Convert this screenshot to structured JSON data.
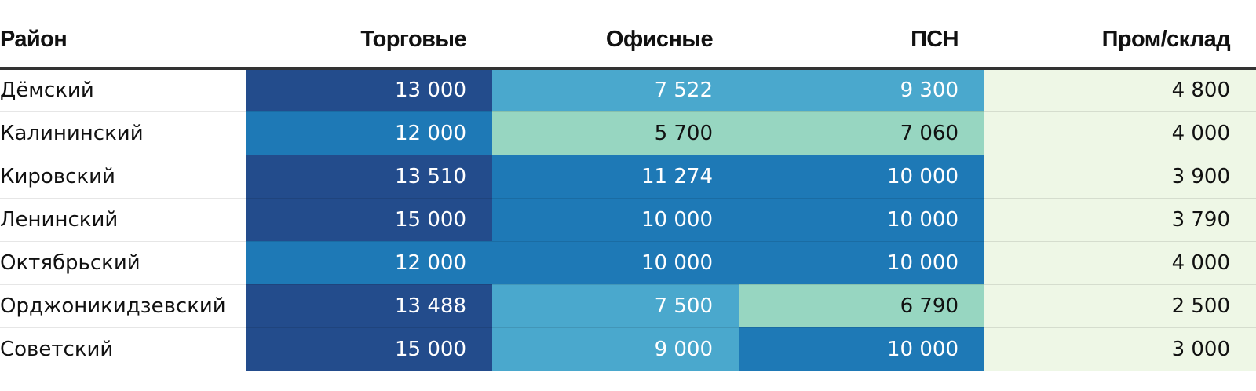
{
  "chart_data": {
    "type": "heatmap",
    "columns": [
      "Район",
      "Торговые",
      "Офисные",
      "ПСН",
      "Пром/склад"
    ],
    "rows": [
      {
        "district": "Дёмский",
        "values": [
          13000,
          7522,
          9300,
          4800
        ],
        "labels": [
          "13 000",
          "7 522",
          "9 300",
          "4 800"
        ]
      },
      {
        "district": "Калининский",
        "values": [
          12000,
          5700,
          7060,
          4000
        ],
        "labels": [
          "12 000",
          "5 700",
          "7 060",
          "4 000"
        ]
      },
      {
        "district": "Кировский",
        "values": [
          13510,
          11274,
          10000,
          3900
        ],
        "labels": [
          "13 510",
          "11 274",
          "10 000",
          "3 900"
        ]
      },
      {
        "district": "Ленинский",
        "values": [
          15000,
          10000,
          10000,
          3790
        ],
        "labels": [
          "15 000",
          "10 000",
          "10 000",
          "3 790"
        ]
      },
      {
        "district": "Октябрьский",
        "values": [
          12000,
          10000,
          10000,
          4000
        ],
        "labels": [
          "12 000",
          "10 000",
          "10 000",
          "4 000"
        ]
      },
      {
        "district": "Орджоникидзевский",
        "values": [
          13488,
          7500,
          6790,
          2500
        ],
        "labels": [
          "13 488",
          "7 500",
          "6 790",
          "2 500"
        ]
      },
      {
        "district": "Советский",
        "values": [
          15000,
          9000,
          10000,
          3000
        ],
        "labels": [
          "15 000",
          "9 000",
          "10 000",
          "3 000"
        ]
      }
    ],
    "color_scale": [
      {
        "min": 0,
        "fill": "#eef7e6",
        "text": "#111111"
      },
      {
        "min": 5000,
        "fill": "#97d6c1",
        "text": "#111111"
      },
      {
        "min": 7500,
        "fill": "#4aa8cd",
        "text": "#ffffff"
      },
      {
        "min": 10000,
        "fill": "#1e79b6",
        "text": "#ffffff"
      },
      {
        "min": 12500,
        "fill": "#234c8c",
        "text": "#ffffff"
      }
    ]
  }
}
